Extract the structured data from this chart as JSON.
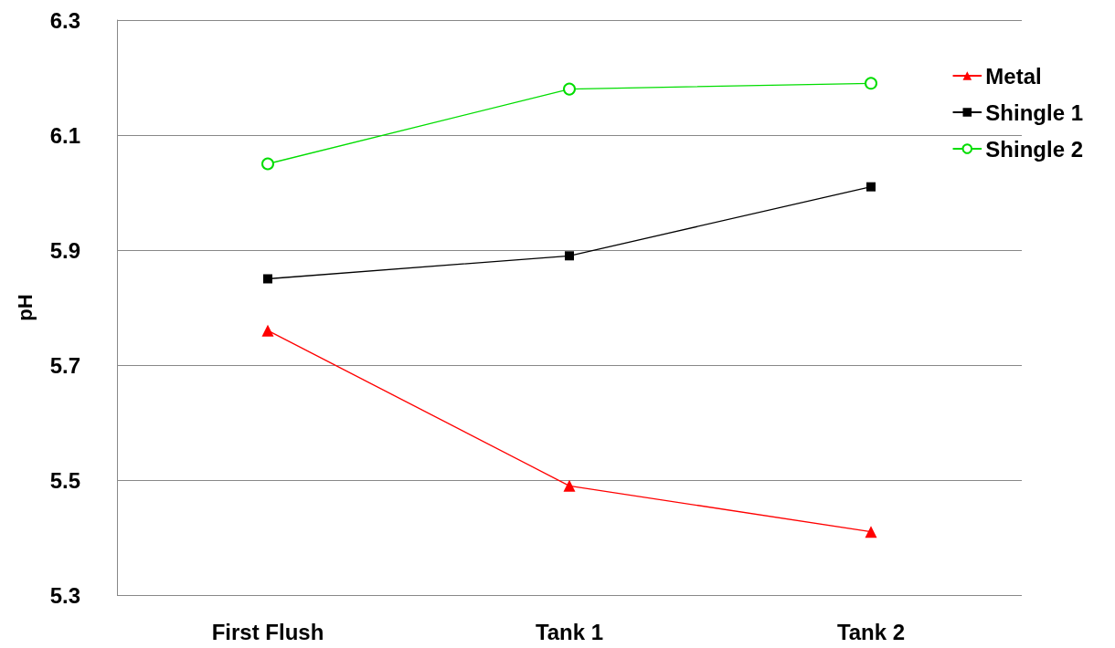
{
  "chart_data": {
    "type": "line",
    "ylabel": "pH",
    "categories": [
      "First Flush",
      "Tank 1",
      "Tank 2"
    ],
    "series": [
      {
        "name": "Metal",
        "color": "#ff0000",
        "marker": "triangle",
        "values": [
          5.76,
          5.49,
          5.41
        ]
      },
      {
        "name": "Shingle 1",
        "color": "#000000",
        "marker": "square",
        "values": [
          5.85,
          5.89,
          6.01
        ]
      },
      {
        "name": "Shingle 2",
        "color": "#00dd00",
        "marker": "circle_open",
        "values": [
          6.05,
          6.18,
          6.19
        ]
      }
    ],
    "ylim": [
      5.3,
      6.3
    ],
    "yticks": [
      5.3,
      5.5,
      5.7,
      5.9,
      6.1,
      6.3
    ],
    "grid": "y",
    "legend": "top right",
    "line_style": "solid"
  }
}
